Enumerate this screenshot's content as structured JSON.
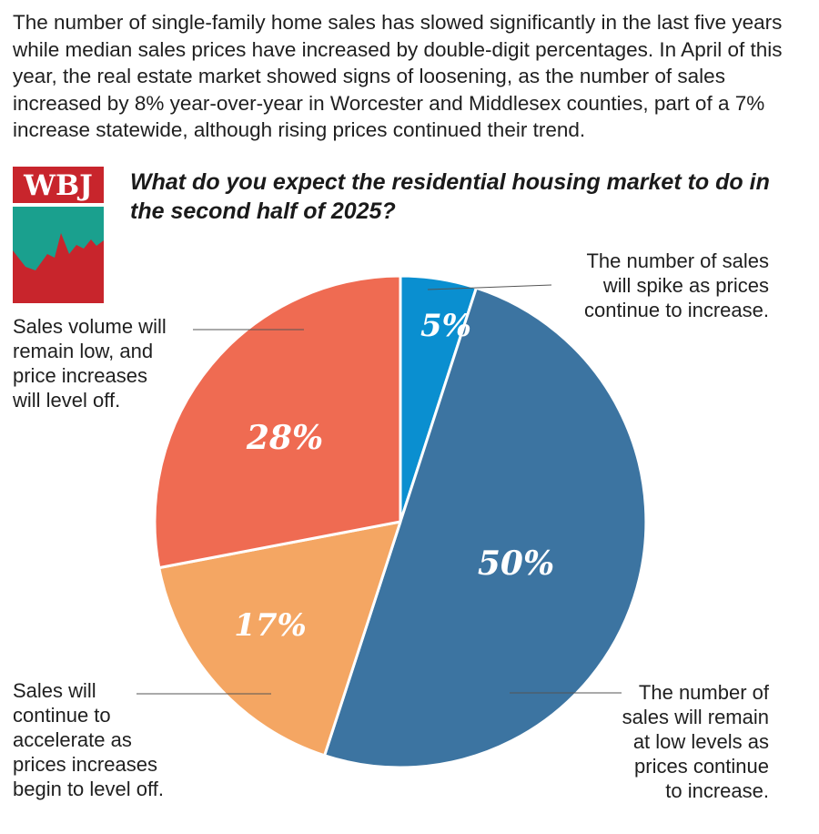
{
  "intro_text": "The number of single-family home sales has slowed significantly in the last five years while median sales prices have increased by double-digit percentages. In April of this year, the real estate market showed signs of loosening, as the number of sales increased by 8% year-over-year in Worcester and Middlesex counties, part of a 7% increase statewide, although rising prices continued their trend.",
  "logo": {
    "text": "WBJ",
    "colors": {
      "red": "#c8252c",
      "teal": "#1aa08e"
    }
  },
  "chart_data": {
    "type": "pie",
    "title": "What do you expect the residential housing market to do in the second half of 2025?",
    "unit": "%",
    "slices": [
      {
        "value": 5,
        "label_text": "5%",
        "description": "The number of sales\nwill spike as prices\ncontinue to increase.",
        "color": "#0a8fd0"
      },
      {
        "value": 50,
        "label_text": "50%",
        "description": "The number of\nsales will remain\nat low levels as\nprices continue\nto increase.",
        "color": "#3c74a1"
      },
      {
        "value": 17,
        "label_text": "17%",
        "description": "Sales will\ncontinue to\naccelerate as\nprices increases\nbegin to level off.",
        "color": "#f4a663"
      },
      {
        "value": 28,
        "label_text": "28%",
        "description": "Sales volume will\nremain low, and\nprice increases\nwill level off.",
        "color": "#ef6b52"
      }
    ]
  }
}
